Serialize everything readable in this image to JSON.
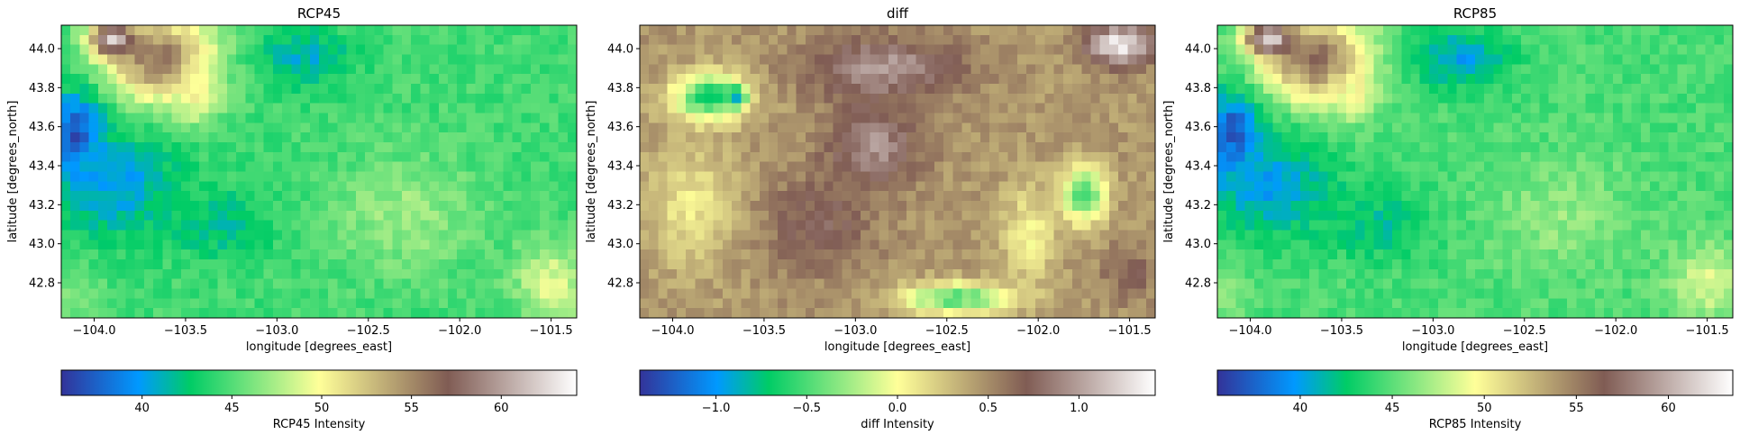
{
  "chart_data": [
    {
      "type": "heatmap",
      "title": "RCP45",
      "xlabel": "longitude [degrees_east]",
      "ylabel": "latitude [degrees_north]",
      "xlim": [
        -104.18,
        -101.36
      ],
      "ylim": [
        42.62,
        44.12
      ],
      "xticks": [
        -104.0,
        -103.5,
        -103.0,
        -102.5,
        -102.0,
        -101.5
      ],
      "xtick_labels": [
        "−104.0",
        "−103.5",
        "−103.0",
        "−102.5",
        "−102.0",
        "−101.5"
      ],
      "yticks": [
        42.8,
        43.0,
        43.2,
        43.4,
        43.6,
        43.8,
        44.0
      ],
      "ytick_labels": [
        "42.8",
        "43.0",
        "43.2",
        "43.4",
        "43.6",
        "43.8",
        "44.0"
      ],
      "colormap": "terrain",
      "colorbar_label": "RCP45 Intensity",
      "colorbar_range": [
        35.5,
        64.2
      ],
      "colorbar_ticks": [
        40,
        45,
        50,
        55,
        60
      ],
      "colorbar_tick_labels": [
        "40",
        "45",
        "50",
        "55",
        "60"
      ],
      "grid": false,
      "features": [
        {
          "lon": -103.65,
          "lat": 43.95,
          "value": 56,
          "r_lon": 0.3,
          "r_lat": 0.22
        },
        {
          "lon": -103.9,
          "lat": 44.05,
          "value": 62,
          "r_lon": 0.12,
          "r_lat": 0.08
        },
        {
          "lon": -103.45,
          "lat": 43.75,
          "value": 50,
          "r_lon": 0.12,
          "r_lat": 0.12
        },
        {
          "lon": -104.1,
          "lat": 43.55,
          "value": 36,
          "r_lon": 0.15,
          "r_lat": 0.22
        },
        {
          "lon": -103.9,
          "lat": 43.3,
          "value": 40,
          "r_lon": 0.35,
          "r_lat": 0.25
        },
        {
          "lon": -102.85,
          "lat": 43.95,
          "value": 41,
          "r_lon": 0.25,
          "r_lat": 0.15
        },
        {
          "lon": -103.3,
          "lat": 43.1,
          "value": 42,
          "r_lon": 0.3,
          "r_lat": 0.18
        },
        {
          "lon": -102.3,
          "lat": 43.15,
          "value": 47,
          "r_lon": 0.4,
          "r_lat": 0.3
        },
        {
          "lon": -101.5,
          "lat": 42.8,
          "value": 49,
          "r_lon": 0.2,
          "r_lat": 0.2
        },
        {
          "lon": -104.1,
          "lat": 42.75,
          "value": 46,
          "r_lon": 0.15,
          "r_lat": 0.12
        }
      ],
      "background_value": 44.5
    },
    {
      "type": "heatmap",
      "title": "diff",
      "xlabel": "longitude [degrees_east]",
      "ylabel": "latitude [degrees_north]",
      "xlim": [
        -104.18,
        -101.36
      ],
      "ylim": [
        42.62,
        44.12
      ],
      "xticks": [
        -104.0,
        -103.5,
        -103.0,
        -102.5,
        -102.0,
        -101.5
      ],
      "xtick_labels": [
        "−104.0",
        "−103.5",
        "−103.0",
        "−102.5",
        "−102.0",
        "−101.5"
      ],
      "yticks": [
        42.8,
        43.0,
        43.2,
        43.4,
        43.6,
        43.8,
        44.0
      ],
      "ytick_labels": [
        "42.8",
        "43.0",
        "43.2",
        "43.4",
        "43.6",
        "43.8",
        "44.0"
      ],
      "colormap": "terrain",
      "colorbar_label": "diff Intensity",
      "colorbar_range": [
        -1.42,
        1.42
      ],
      "colorbar_ticks": [
        -1.0,
        -0.5,
        0.0,
        0.5,
        1.0
      ],
      "colorbar_tick_labels": [
        "−1.0",
        "−0.5",
        "0.0",
        "0.5",
        "1.0"
      ],
      "grid": false,
      "features": [
        {
          "lon": -103.8,
          "lat": 43.75,
          "value": -0.7,
          "r_lon": 0.2,
          "r_lat": 0.12
        },
        {
          "lon": -103.65,
          "lat": 43.75,
          "value": -1.0,
          "r_lon": 0.05,
          "r_lat": 0.05
        },
        {
          "lon": -103.9,
          "lat": 43.2,
          "value": 0.1,
          "r_lon": 0.25,
          "r_lat": 0.3
        },
        {
          "lon": -102.85,
          "lat": 43.9,
          "value": 1.0,
          "r_lon": 0.4,
          "r_lat": 0.15
        },
        {
          "lon": -102.9,
          "lat": 43.5,
          "value": 0.95,
          "r_lon": 0.25,
          "r_lat": 0.2
        },
        {
          "lon": -101.55,
          "lat": 44.02,
          "value": 1.35,
          "r_lon": 0.18,
          "r_lat": 0.1
        },
        {
          "lon": -101.75,
          "lat": 43.25,
          "value": -0.5,
          "r_lon": 0.12,
          "r_lat": 0.15
        },
        {
          "lon": -102.45,
          "lat": 42.72,
          "value": -0.5,
          "r_lon": 0.3,
          "r_lat": 0.08
        },
        {
          "lon": -102.05,
          "lat": 43.05,
          "value": 0.05,
          "r_lon": 0.15,
          "r_lat": 0.25
        },
        {
          "lon": -101.5,
          "lat": 42.85,
          "value": 0.7,
          "r_lon": 0.15,
          "r_lat": 0.15
        },
        {
          "lon": -103.2,
          "lat": 43.1,
          "value": 0.75,
          "r_lon": 0.3,
          "r_lat": 0.25
        }
      ],
      "background_value": 0.45
    },
    {
      "type": "heatmap",
      "title": "RCP85",
      "xlabel": "longitude [degrees_east]",
      "ylabel": "latitude [degrees_north]",
      "xlim": [
        -104.18,
        -101.36
      ],
      "ylim": [
        42.62,
        44.12
      ],
      "xticks": [
        -104.0,
        -103.5,
        -103.0,
        -102.5,
        -102.0,
        -101.5
      ],
      "xtick_labels": [
        "−104.0",
        "−103.5",
        "−103.0",
        "−102.5",
        "−102.0",
        "−101.5"
      ],
      "yticks": [
        42.8,
        43.0,
        43.2,
        43.4,
        43.6,
        43.8,
        44.0
      ],
      "ytick_labels": [
        "42.8",
        "43.0",
        "43.2",
        "43.4",
        "43.6",
        "43.8",
        "44.0"
      ],
      "colormap": "terrain",
      "colorbar_label": "RCP85 Intensity",
      "colorbar_range": [
        35.5,
        63.5
      ],
      "colorbar_ticks": [
        40,
        45,
        50,
        55,
        60
      ],
      "colorbar_tick_labels": [
        "40",
        "45",
        "50",
        "55",
        "60"
      ],
      "grid": false,
      "features": [
        {
          "lon": -103.65,
          "lat": 43.95,
          "value": 56,
          "r_lon": 0.3,
          "r_lat": 0.22
        },
        {
          "lon": -103.9,
          "lat": 44.05,
          "value": 62,
          "r_lon": 0.12,
          "r_lat": 0.08
        },
        {
          "lon": -103.45,
          "lat": 43.75,
          "value": 50,
          "r_lon": 0.12,
          "r_lat": 0.12
        },
        {
          "lon": -104.1,
          "lat": 43.55,
          "value": 36,
          "r_lon": 0.15,
          "r_lat": 0.22
        },
        {
          "lon": -103.9,
          "lat": 43.3,
          "value": 40,
          "r_lon": 0.35,
          "r_lat": 0.25
        },
        {
          "lon": -102.85,
          "lat": 43.95,
          "value": 40,
          "r_lon": 0.25,
          "r_lat": 0.15
        },
        {
          "lon": -103.3,
          "lat": 43.1,
          "value": 42,
          "r_lon": 0.3,
          "r_lat": 0.18
        },
        {
          "lon": -102.3,
          "lat": 43.15,
          "value": 46.5,
          "r_lon": 0.4,
          "r_lat": 0.3
        },
        {
          "lon": -101.5,
          "lat": 42.8,
          "value": 48.5,
          "r_lon": 0.2,
          "r_lat": 0.2
        },
        {
          "lon": -104.1,
          "lat": 42.75,
          "value": 46,
          "r_lon": 0.15,
          "r_lat": 0.12
        }
      ],
      "background_value": 44.5
    }
  ]
}
